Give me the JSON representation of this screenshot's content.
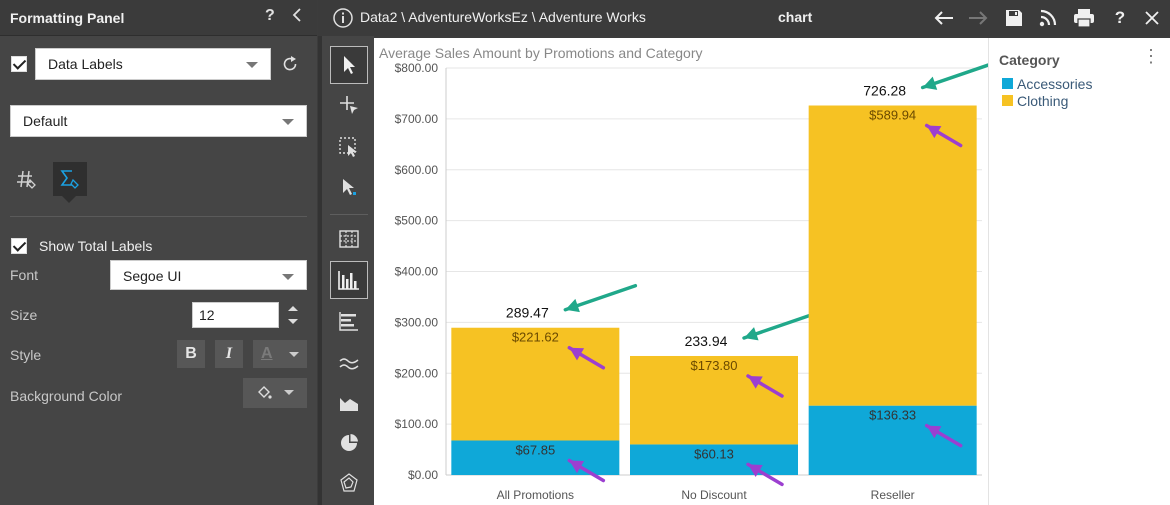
{
  "panel": {
    "title": "Formatting Panel",
    "help_icon": "question-mark-icon",
    "collapse_icon": "chevron-left-icon",
    "label_type_checked": true,
    "label_type": "Data Labels",
    "preset": "Default",
    "tabs": [
      {
        "name": "number-format-tab",
        "icon": "hash-format-icon",
        "active": false
      },
      {
        "name": "total-labels-tab",
        "icon": "sigma-format-icon",
        "active": true
      }
    ],
    "show_total_labels_checked": true,
    "show_total_labels": "Show Total Labels",
    "font_label": "Font",
    "font_value": "Segoe UI",
    "size_label": "Size",
    "size_value": "12",
    "style_label": "Style",
    "bold": "B",
    "italic": "I",
    "font_color_letter": "A",
    "background_color_label": "Background Color"
  },
  "topbar": {
    "breadcrumb": "Data2 \\ AdventureWorksEz \\ Adventure Works",
    "view_name": "chart",
    "icons": [
      "info-icon",
      "back-arrow-icon",
      "forward-arrow-icon",
      "save-icon",
      "rss-icon",
      "print-icon",
      "help-icon",
      "close-icon"
    ]
  },
  "toolbar": {
    "tools": [
      "pointer-tool-icon",
      "crosshair-tool-icon",
      "lasso-select-icon",
      "drill-pointer-icon",
      "grid-table-icon",
      "bar-chart-icon",
      "horizontal-bar-icon",
      "line-chart-icon",
      "area-chart-icon",
      "pie-chart-icon",
      "radar-chart-icon"
    ],
    "active_tool": "bar-chart-icon"
  },
  "colors": {
    "accessories": "#0fa8d8",
    "clothing": "#f6c223",
    "arrow_green": "#20a88a",
    "arrow_purple": "#9c3fd0"
  },
  "chart_data": {
    "type": "bar",
    "stacked": true,
    "title": "Average Sales Amount by Promotions and Category",
    "categories": [
      "All Promotions",
      "No Discount",
      "Reseller"
    ],
    "series": [
      {
        "name": "Accessories",
        "values": [
          67.85,
          60.13,
          136.33
        ],
        "labels": [
          "$67.85",
          "$60.13",
          "$136.33"
        ]
      },
      {
        "name": "Clothing",
        "values": [
          221.62,
          173.8,
          589.94
        ],
        "labels": [
          "$221.62",
          "$173.80",
          "$589.94"
        ]
      }
    ],
    "totals": [
      "289.47",
      "233.94",
      "726.28"
    ],
    "ylim": [
      0,
      800
    ],
    "yticks": [
      "$0.00",
      "$100.00",
      "$200.00",
      "$300.00",
      "$400.00",
      "$500.00",
      "$600.00",
      "$700.00",
      "$800.00"
    ],
    "grid": true,
    "legend": {
      "title": "Category",
      "position": "right"
    }
  }
}
